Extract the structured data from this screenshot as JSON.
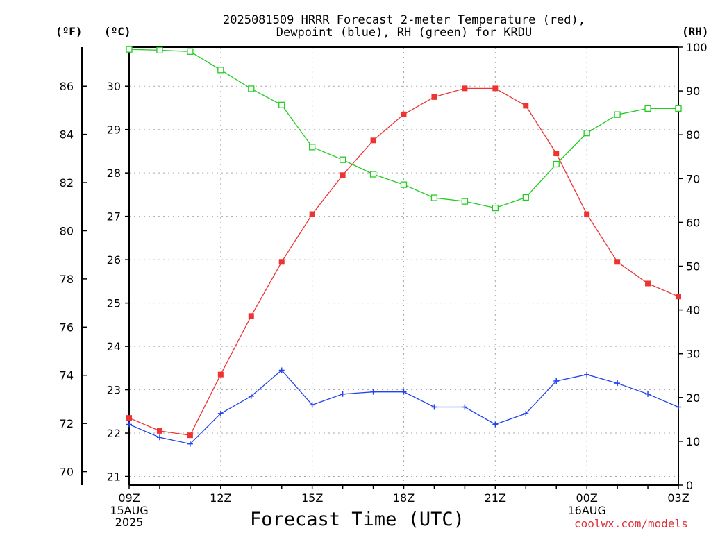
{
  "title": {
    "line1": "2025081509 HRRR Forecast 2-meter Temperature (red),",
    "line2": "Dewpoint (blue), RH (green) for KRDU"
  },
  "units": {
    "fahrenheit": "(ºF)",
    "celsius": "(ºC)",
    "rh": "(RH)"
  },
  "xlabel": "Forecast Time (UTC)",
  "credit": "coolwx.com/models",
  "colors": {
    "temperature": "#ee3333",
    "dewpoint": "#2244ee",
    "rh": "#22cc22",
    "grid": "#aaaaaa"
  },
  "chart_data": {
    "type": "line",
    "x": [
      "09Z",
      "10Z",
      "11Z",
      "12Z",
      "13Z",
      "14Z",
      "15Z",
      "16Z",
      "17Z",
      "18Z",
      "19Z",
      "20Z",
      "21Z",
      "22Z",
      "23Z",
      "00Z",
      "01Z",
      "02Z",
      "03Z"
    ],
    "x_ticks": [
      {
        "hour": "09Z",
        "date": "15AUG",
        "year": "2025"
      },
      {
        "hour": "12Z"
      },
      {
        "hour": "15Z"
      },
      {
        "hour": "18Z"
      },
      {
        "hour": "21Z"
      },
      {
        "hour": "00Z",
        "date": "16AUG"
      },
      {
        "hour": "03Z"
      }
    ],
    "y_left_celsius": {
      "range": [
        20.8,
        30.9
      ],
      "ticks": [
        21,
        22,
        23,
        24,
        25,
        26,
        27,
        28,
        29,
        30
      ]
    },
    "y_left_fahrenheit": {
      "range": [
        69.44,
        87.62
      ],
      "ticks": [
        70,
        72,
        74,
        76,
        78,
        80,
        82,
        84,
        86
      ]
    },
    "y_right_rh": {
      "range": [
        0,
        100
      ],
      "ticks": [
        0,
        10,
        20,
        30,
        40,
        50,
        60,
        70,
        80,
        90,
        100
      ]
    },
    "grid": true,
    "series": [
      {
        "name": "Temperature",
        "axis": "celsius",
        "marker": "filled-square",
        "values": [
          22.35,
          22.05,
          21.95,
          23.35,
          24.7,
          25.95,
          27.05,
          27.95,
          28.75,
          29.35,
          29.75,
          29.95,
          29.95,
          29.55,
          28.45,
          27.05,
          25.95,
          25.45,
          25.15
        ]
      },
      {
        "name": "Dewpoint",
        "axis": "celsius",
        "marker": "plus",
        "values": [
          22.2,
          21.9,
          21.75,
          22.45,
          22.85,
          23.45,
          22.65,
          22.9,
          22.95,
          22.95,
          22.6,
          22.6,
          22.2,
          22.45,
          23.2,
          23.35,
          23.15,
          22.9,
          22.6
        ]
      },
      {
        "name": "RH",
        "axis": "rh",
        "marker": "open-square",
        "values": [
          99.5,
          99.3,
          99.0,
          94.8,
          90.5,
          86.8,
          77.2,
          74.3,
          71.0,
          68.6,
          65.6,
          64.8,
          63.3,
          65.7,
          73.3,
          80.4,
          84.6,
          86.0,
          86.0
        ]
      }
    ]
  }
}
